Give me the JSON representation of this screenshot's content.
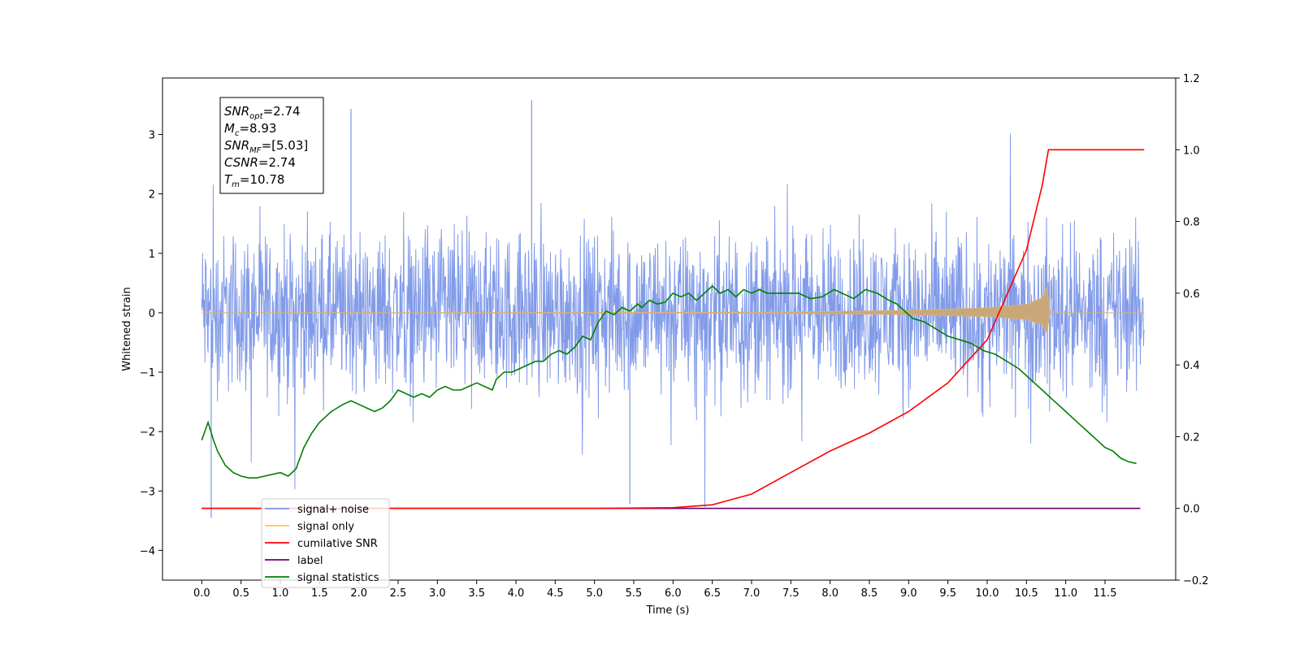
{
  "chart_data": {
    "type": "line",
    "xlabel": "Time (s)",
    "ylabel": "Whitened strain",
    "xlim": [
      -0.5,
      12.4
    ],
    "ylim": [
      -4.5,
      3.95
    ],
    "y2lim": [
      -0.2,
      1.2
    ],
    "x_ticks": [
      "0.0",
      "0.5",
      "1.0",
      "1.5",
      "2.0",
      "2.5",
      "3.0",
      "3.5",
      "4.0",
      "4.5",
      "5.0",
      "5.5",
      "6.0",
      "6.5",
      "7.0",
      "7.5",
      "8.0",
      "8.5",
      "9.0",
      "9.5",
      "10.0",
      "10.5",
      "11.0",
      "11.5"
    ],
    "y_ticks": [
      "3",
      "2",
      "1",
      "0",
      "−1",
      "−2",
      "−3",
      "−4"
    ],
    "y2_ticks": [
      "1.2",
      "1.0",
      "0.8",
      "0.6",
      "0.4",
      "0.2",
      "0.0",
      "−0.2"
    ],
    "legend_position": "lower-left",
    "stats_box": [
      {
        "base": "SNR",
        "sub": "opt",
        "value": "=2.74"
      },
      {
        "base": "M",
        "sub": "c",
        "value": "=8.93"
      },
      {
        "base": "SNR",
        "sub": "MF",
        "value": "=[5.03]"
      },
      {
        "base": "CSNR",
        "sub": "",
        "value": "=2.74"
      },
      {
        "base": "T",
        "sub": "m",
        "value": "=10.78"
      }
    ],
    "series": [
      {
        "name": "signal+ noise",
        "color": "#7b96e8",
        "axis": "left",
        "x_range": [
          0.0,
          12.0
        ],
        "noise_envelope": [
          -1.6,
          1.6
        ],
        "peak_values": [
          3.43,
          3.58,
          -3.45,
          -3.22
        ]
      },
      {
        "name": "signal only",
        "color": "#ffc060",
        "axis": "left",
        "chirp_points": [
          [
            0,
            0
          ],
          [
            6,
            0.005
          ],
          [
            7,
            0.01
          ],
          [
            8,
            0.02
          ],
          [
            9,
            0.04
          ],
          [
            10,
            0.08
          ],
          [
            10.5,
            0.14
          ],
          [
            10.7,
            0.25
          ],
          [
            10.76,
            0.42
          ],
          [
            10.8,
            0.0
          ],
          [
            12.0,
            0.0
          ]
        ]
      },
      {
        "name": "cumilative SNR",
        "color": "#ff0000",
        "axis": "right",
        "points": [
          [
            0,
            0
          ],
          [
            5,
            0.0
          ],
          [
            6,
            0.002
          ],
          [
            6.5,
            0.01
          ],
          [
            7,
            0.04
          ],
          [
            7.5,
            0.1
          ],
          [
            8,
            0.16
          ],
          [
            8.5,
            0.21
          ],
          [
            9,
            0.27
          ],
          [
            9.5,
            0.35
          ],
          [
            10,
            0.47
          ],
          [
            10.5,
            0.72
          ],
          [
            10.7,
            0.9
          ],
          [
            10.78,
            1.0
          ],
          [
            12.0,
            1.0
          ]
        ]
      },
      {
        "name": "label",
        "color": "#6a0070",
        "axis": "right",
        "points": [
          [
            0,
            0
          ],
          [
            11.95,
            0
          ]
        ]
      },
      {
        "name": "signal statistics",
        "color": "#008000",
        "axis": "right",
        "points": [
          [
            0.0,
            0.19
          ],
          [
            0.08,
            0.24
          ],
          [
            0.15,
            0.19
          ],
          [
            0.2,
            0.16
          ],
          [
            0.3,
            0.12
          ],
          [
            0.4,
            0.1
          ],
          [
            0.5,
            0.09
          ],
          [
            0.6,
            0.085
          ],
          [
            0.7,
            0.085
          ],
          [
            0.8,
            0.09
          ],
          [
            0.9,
            0.095
          ],
          [
            1.0,
            0.1
          ],
          [
            1.1,
            0.09
          ],
          [
            1.2,
            0.11
          ],
          [
            1.3,
            0.17
          ],
          [
            1.4,
            0.21
          ],
          [
            1.5,
            0.24
          ],
          [
            1.65,
            0.27
          ],
          [
            1.8,
            0.29
          ],
          [
            1.9,
            0.3
          ],
          [
            2.0,
            0.29
          ],
          [
            2.1,
            0.28
          ],
          [
            2.2,
            0.27
          ],
          [
            2.3,
            0.28
          ],
          [
            2.4,
            0.3
          ],
          [
            2.5,
            0.33
          ],
          [
            2.6,
            0.32
          ],
          [
            2.7,
            0.31
          ],
          [
            2.8,
            0.32
          ],
          [
            2.9,
            0.31
          ],
          [
            3.0,
            0.33
          ],
          [
            3.1,
            0.34
          ],
          [
            3.2,
            0.33
          ],
          [
            3.3,
            0.33
          ],
          [
            3.4,
            0.34
          ],
          [
            3.5,
            0.35
          ],
          [
            3.6,
            0.34
          ],
          [
            3.7,
            0.33
          ],
          [
            3.75,
            0.36
          ],
          [
            3.85,
            0.38
          ],
          [
            3.95,
            0.38
          ],
          [
            4.05,
            0.39
          ],
          [
            4.15,
            0.4
          ],
          [
            4.25,
            0.41
          ],
          [
            4.35,
            0.41
          ],
          [
            4.45,
            0.43
          ],
          [
            4.55,
            0.44
          ],
          [
            4.65,
            0.43
          ],
          [
            4.75,
            0.45
          ],
          [
            4.85,
            0.48
          ],
          [
            4.95,
            0.47
          ],
          [
            5.05,
            0.52
          ],
          [
            5.15,
            0.55
          ],
          [
            5.25,
            0.54
          ],
          [
            5.35,
            0.56
          ],
          [
            5.45,
            0.55
          ],
          [
            5.55,
            0.57
          ],
          [
            5.6,
            0.56
          ],
          [
            5.7,
            0.58
          ],
          [
            5.8,
            0.57
          ],
          [
            5.9,
            0.575
          ],
          [
            6.0,
            0.6
          ],
          [
            6.1,
            0.59
          ],
          [
            6.2,
            0.6
          ],
          [
            6.3,
            0.58
          ],
          [
            6.4,
            0.6
          ],
          [
            6.5,
            0.62
          ],
          [
            6.6,
            0.6
          ],
          [
            6.7,
            0.61
          ],
          [
            6.8,
            0.59
          ],
          [
            6.9,
            0.61
          ],
          [
            7.0,
            0.6
          ],
          [
            7.1,
            0.61
          ],
          [
            7.2,
            0.6
          ],
          [
            7.35,
            0.6
          ],
          [
            7.45,
            0.6
          ],
          [
            7.6,
            0.6
          ],
          [
            7.75,
            0.585
          ],
          [
            7.9,
            0.59
          ],
          [
            8.05,
            0.61
          ],
          [
            8.15,
            0.6
          ],
          [
            8.3,
            0.585
          ],
          [
            8.45,
            0.61
          ],
          [
            8.6,
            0.6
          ],
          [
            8.75,
            0.58
          ],
          [
            8.85,
            0.57
          ],
          [
            8.95,
            0.55
          ],
          [
            9.05,
            0.53
          ],
          [
            9.2,
            0.52
          ],
          [
            9.35,
            0.5
          ],
          [
            9.5,
            0.48
          ],
          [
            9.65,
            0.47
          ],
          [
            9.8,
            0.46
          ],
          [
            9.95,
            0.44
          ],
          [
            10.1,
            0.43
          ],
          [
            10.25,
            0.41
          ],
          [
            10.4,
            0.39
          ],
          [
            10.5,
            0.37
          ],
          [
            10.6,
            0.35
          ],
          [
            10.7,
            0.33
          ],
          [
            10.8,
            0.31
          ],
          [
            10.9,
            0.29
          ],
          [
            11.0,
            0.27
          ],
          [
            11.1,
            0.25
          ],
          [
            11.2,
            0.23
          ],
          [
            11.3,
            0.21
          ],
          [
            11.4,
            0.19
          ],
          [
            11.5,
            0.17
          ],
          [
            11.6,
            0.16
          ],
          [
            11.7,
            0.14
          ],
          [
            11.8,
            0.13
          ],
          [
            11.9,
            0.125
          ]
        ]
      }
    ]
  }
}
